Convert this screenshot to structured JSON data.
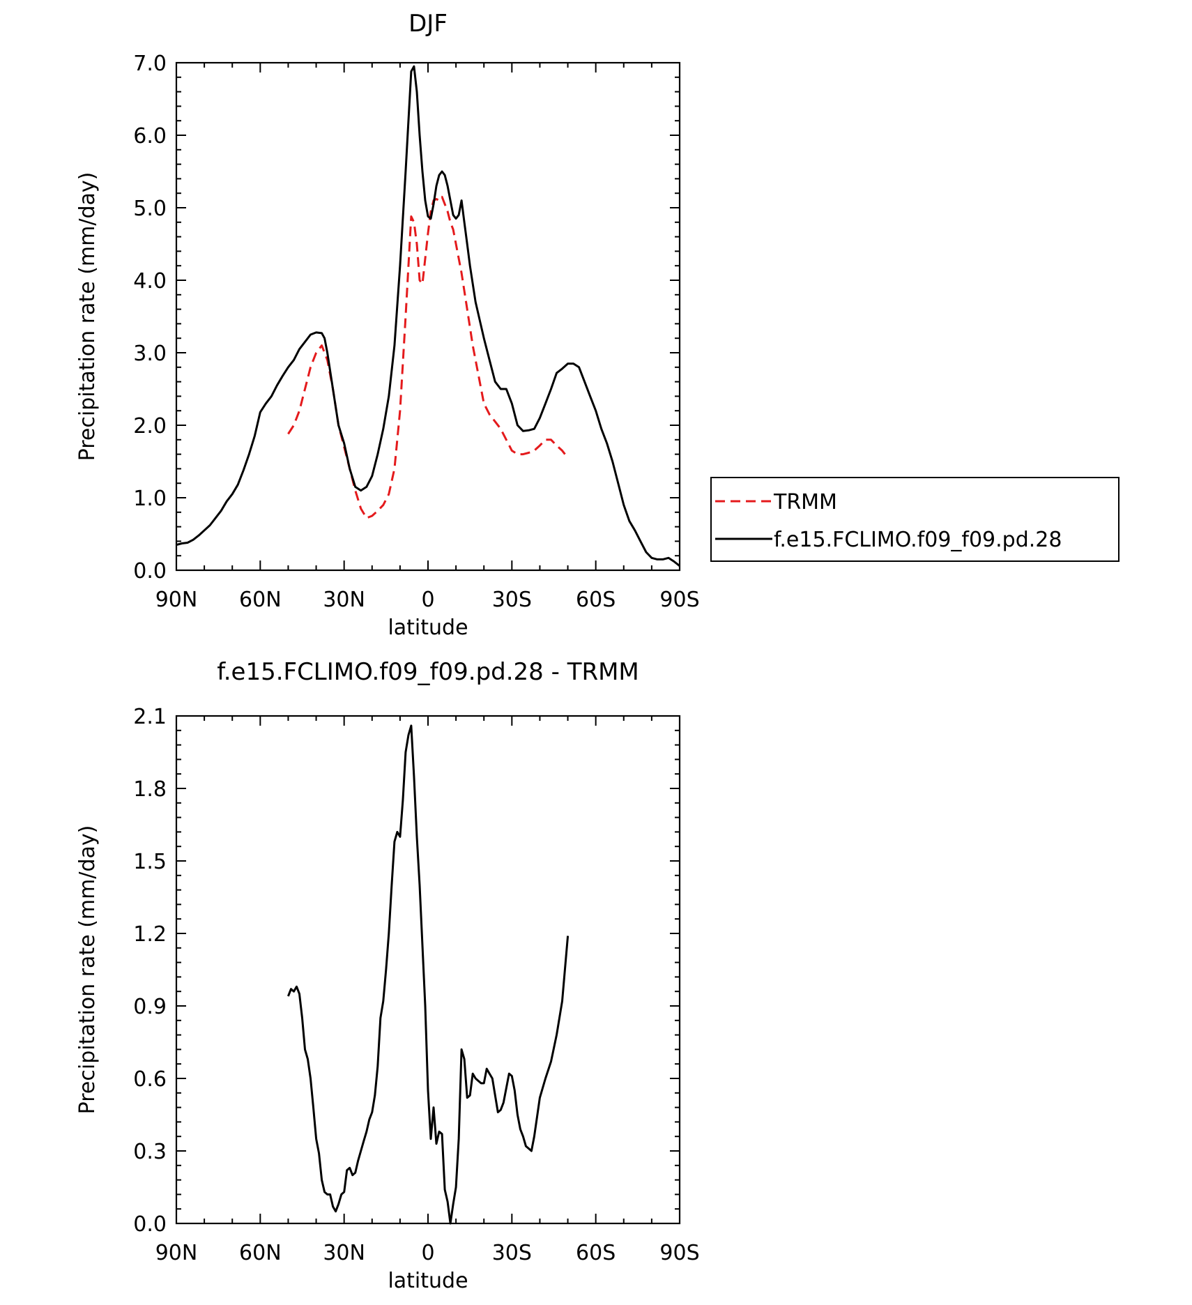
{
  "chart_data": [
    {
      "type": "line",
      "title": "DJF",
      "xlabel": "latitude",
      "ylabel": "Precipitation rate (mm/day)",
      "xlim": [
        90,
        -90
      ],
      "ylim": [
        0,
        7
      ],
      "x_ticks": [
        90,
        60,
        30,
        0,
        -30,
        -60,
        -90
      ],
      "x_tick_labels": [
        "90N",
        "60N",
        "30N",
        "0",
        "30S",
        "60S",
        "90S"
      ],
      "y_ticks": [
        0,
        1,
        2,
        3,
        4,
        5,
        6,
        7
      ],
      "y_tick_labels": [
        "0.0",
        "1.0",
        "2.0",
        "3.0",
        "4.0",
        "5.0",
        "6.0",
        "7.0"
      ],
      "legend_position": "right",
      "grid": false,
      "series": [
        {
          "name": "TRMM",
          "color": "#e41a1c",
          "style": "dashed",
          "x": [
            50,
            48,
            46,
            44,
            42,
            40,
            38,
            36,
            34,
            32,
            30,
            28,
            26,
            24,
            22,
            20,
            18,
            16,
            14,
            12,
            10,
            8,
            6,
            5,
            4,
            3,
            2,
            1,
            0,
            -1,
            -2,
            -3,
            -4,
            -5,
            -6,
            -7,
            -8,
            -9,
            -10,
            -12,
            -14,
            -16,
            -18,
            -20,
            -22,
            -24,
            -26,
            -28,
            -30,
            -32,
            -34,
            -36,
            -38,
            -40,
            -42,
            -44,
            -46,
            -48,
            -50
          ],
          "y": [
            1.88,
            2.0,
            2.2,
            2.5,
            2.8,
            3.0,
            3.1,
            2.9,
            2.5,
            2.0,
            1.7,
            1.4,
            1.1,
            0.85,
            0.72,
            0.75,
            0.82,
            0.9,
            1.05,
            1.4,
            2.2,
            3.5,
            4.88,
            4.8,
            4.5,
            4.0,
            3.95,
            4.3,
            4.65,
            4.95,
            5.1,
            5.12,
            5.1,
            5.15,
            5.05,
            4.95,
            4.8,
            4.7,
            4.5,
            4.1,
            3.6,
            3.1,
            2.7,
            2.3,
            2.15,
            2.05,
            1.95,
            1.8,
            1.65,
            1.6,
            1.6,
            1.62,
            1.65,
            1.72,
            1.8,
            1.8,
            1.72,
            1.65,
            1.55
          ]
        },
        {
          "name": "f.e15.FCLIMO.f09_f09.pd.28",
          "color": "#000000",
          "style": "solid",
          "x": [
            90,
            88,
            86,
            84,
            82,
            80,
            78,
            76,
            74,
            72,
            70,
            68,
            66,
            64,
            62,
            60,
            58,
            56,
            54,
            52,
            50,
            48,
            46,
            44,
            42,
            40,
            38,
            37,
            36,
            34,
            32,
            30,
            28,
            26,
            24,
            22,
            20,
            18,
            16,
            14,
            12,
            10,
            8,
            6,
            5,
            4,
            3,
            2,
            1,
            0,
            -1,
            -2,
            -3,
            -4,
            -5,
            -6,
            -7,
            -8,
            -9,
            -10,
            -11,
            -12,
            -13,
            -14,
            -15,
            -17,
            -20,
            -22,
            -24,
            -26,
            -28,
            -30,
            -32,
            -34,
            -36,
            -38,
            -40,
            -42,
            -44,
            -46,
            -48,
            -50,
            -52,
            -54,
            -56,
            -58,
            -60,
            -62,
            -64,
            -66,
            -68,
            -70,
            -72,
            -74,
            -76,
            -78,
            -80,
            -82,
            -84,
            -86,
            -88,
            -90
          ],
          "y": [
            0.35,
            0.37,
            0.38,
            0.42,
            0.48,
            0.55,
            0.62,
            0.72,
            0.82,
            0.95,
            1.05,
            1.18,
            1.38,
            1.6,
            1.85,
            2.18,
            2.3,
            2.4,
            2.55,
            2.68,
            2.8,
            2.9,
            3.05,
            3.15,
            3.25,
            3.28,
            3.27,
            3.2,
            3.0,
            2.5,
            2.0,
            1.75,
            1.4,
            1.15,
            1.1,
            1.15,
            1.3,
            1.6,
            1.95,
            2.4,
            3.1,
            4.2,
            5.5,
            6.88,
            6.95,
            6.6,
            6.0,
            5.5,
            5.1,
            4.88,
            4.85,
            5.05,
            5.3,
            5.45,
            5.5,
            5.45,
            5.3,
            5.1,
            4.9,
            4.85,
            4.9,
            5.1,
            4.8,
            4.5,
            4.2,
            3.7,
            3.2,
            2.9,
            2.6,
            2.5,
            2.5,
            2.3,
            2.0,
            1.92,
            1.93,
            1.95,
            2.1,
            2.3,
            2.5,
            2.72,
            2.78,
            2.85,
            2.85,
            2.8,
            2.6,
            2.4,
            2.2,
            1.95,
            1.75,
            1.5,
            1.2,
            0.9,
            0.68,
            0.55,
            0.4,
            0.25,
            0.17,
            0.15,
            0.15,
            0.17,
            0.12,
            0.06
          ]
        }
      ]
    },
    {
      "type": "line",
      "title": "f.e15.FCLIMO.f09_f09.pd.28 - TRMM",
      "xlabel": "latitude",
      "ylabel": "Precipitation rate (mm/day)",
      "xlim": [
        90,
        -90
      ],
      "ylim": [
        0,
        2.1
      ],
      "x_ticks": [
        90,
        60,
        30,
        0,
        -30,
        -60,
        -90
      ],
      "x_tick_labels": [
        "90N",
        "60N",
        "30N",
        "0",
        "30S",
        "60S",
        "90S"
      ],
      "y_ticks": [
        0,
        0.3,
        0.6,
        0.9,
        1.2,
        1.5,
        1.8,
        2.1
      ],
      "y_tick_labels": [
        "0.0",
        "0.3",
        "0.6",
        "0.9",
        "1.2",
        "1.5",
        "1.8",
        "2.1"
      ],
      "grid": false,
      "series": [
        {
          "color": "#000000",
          "style": "solid",
          "x": [
            50,
            49,
            48,
            47,
            46,
            45,
            44,
            43,
            42,
            41,
            40,
            39,
            38,
            37,
            36,
            35,
            34,
            33,
            32,
            31,
            30,
            29,
            28,
            27,
            26,
            25,
            24,
            23,
            22,
            21,
            20,
            19,
            18,
            17,
            16,
            15,
            14,
            13,
            12,
            11,
            10,
            9,
            8,
            7,
            6,
            5,
            4,
            3,
            2,
            1,
            0,
            -1,
            -2,
            -3,
            -4,
            -5,
            -6,
            -7,
            -8,
            -9,
            -10,
            -11,
            -12,
            -13,
            -14,
            -15,
            -16,
            -17,
            -18,
            -19,
            -20,
            -21,
            -22,
            -23,
            -24,
            -25,
            -26,
            -27,
            -28,
            -29,
            -30,
            -31,
            -32,
            -33,
            -34,
            -35,
            -36,
            -37,
            -38,
            -39,
            -40,
            -42,
            -44,
            -46,
            -48,
            -50
          ],
          "y": [
            0.94,
            0.97,
            0.96,
            0.98,
            0.95,
            0.85,
            0.72,
            0.68,
            0.6,
            0.48,
            0.35,
            0.29,
            0.18,
            0.13,
            0.12,
            0.12,
            0.07,
            0.05,
            0.08,
            0.12,
            0.13,
            0.22,
            0.23,
            0.2,
            0.21,
            0.26,
            0.3,
            0.34,
            0.38,
            0.43,
            0.46,
            0.53,
            0.65,
            0.85,
            0.92,
            1.05,
            1.2,
            1.4,
            1.58,
            1.62,
            1.6,
            1.75,
            1.95,
            2.02,
            2.06,
            1.85,
            1.6,
            1.4,
            1.15,
            0.9,
            0.55,
            0.35,
            0.48,
            0.33,
            0.38,
            0.37,
            0.14,
            0.09,
            0.0,
            0.08,
            0.15,
            0.35,
            0.72,
            0.68,
            0.52,
            0.53,
            0.62,
            0.6,
            0.59,
            0.58,
            0.58,
            0.64,
            0.62,
            0.6,
            0.53,
            0.46,
            0.47,
            0.5,
            0.56,
            0.62,
            0.61,
            0.55,
            0.45,
            0.39,
            0.36,
            0.32,
            0.31,
            0.3,
            0.36,
            0.44,
            0.52,
            0.6,
            0.67,
            0.78,
            0.92,
            1.19
          ]
        }
      ]
    }
  ]
}
